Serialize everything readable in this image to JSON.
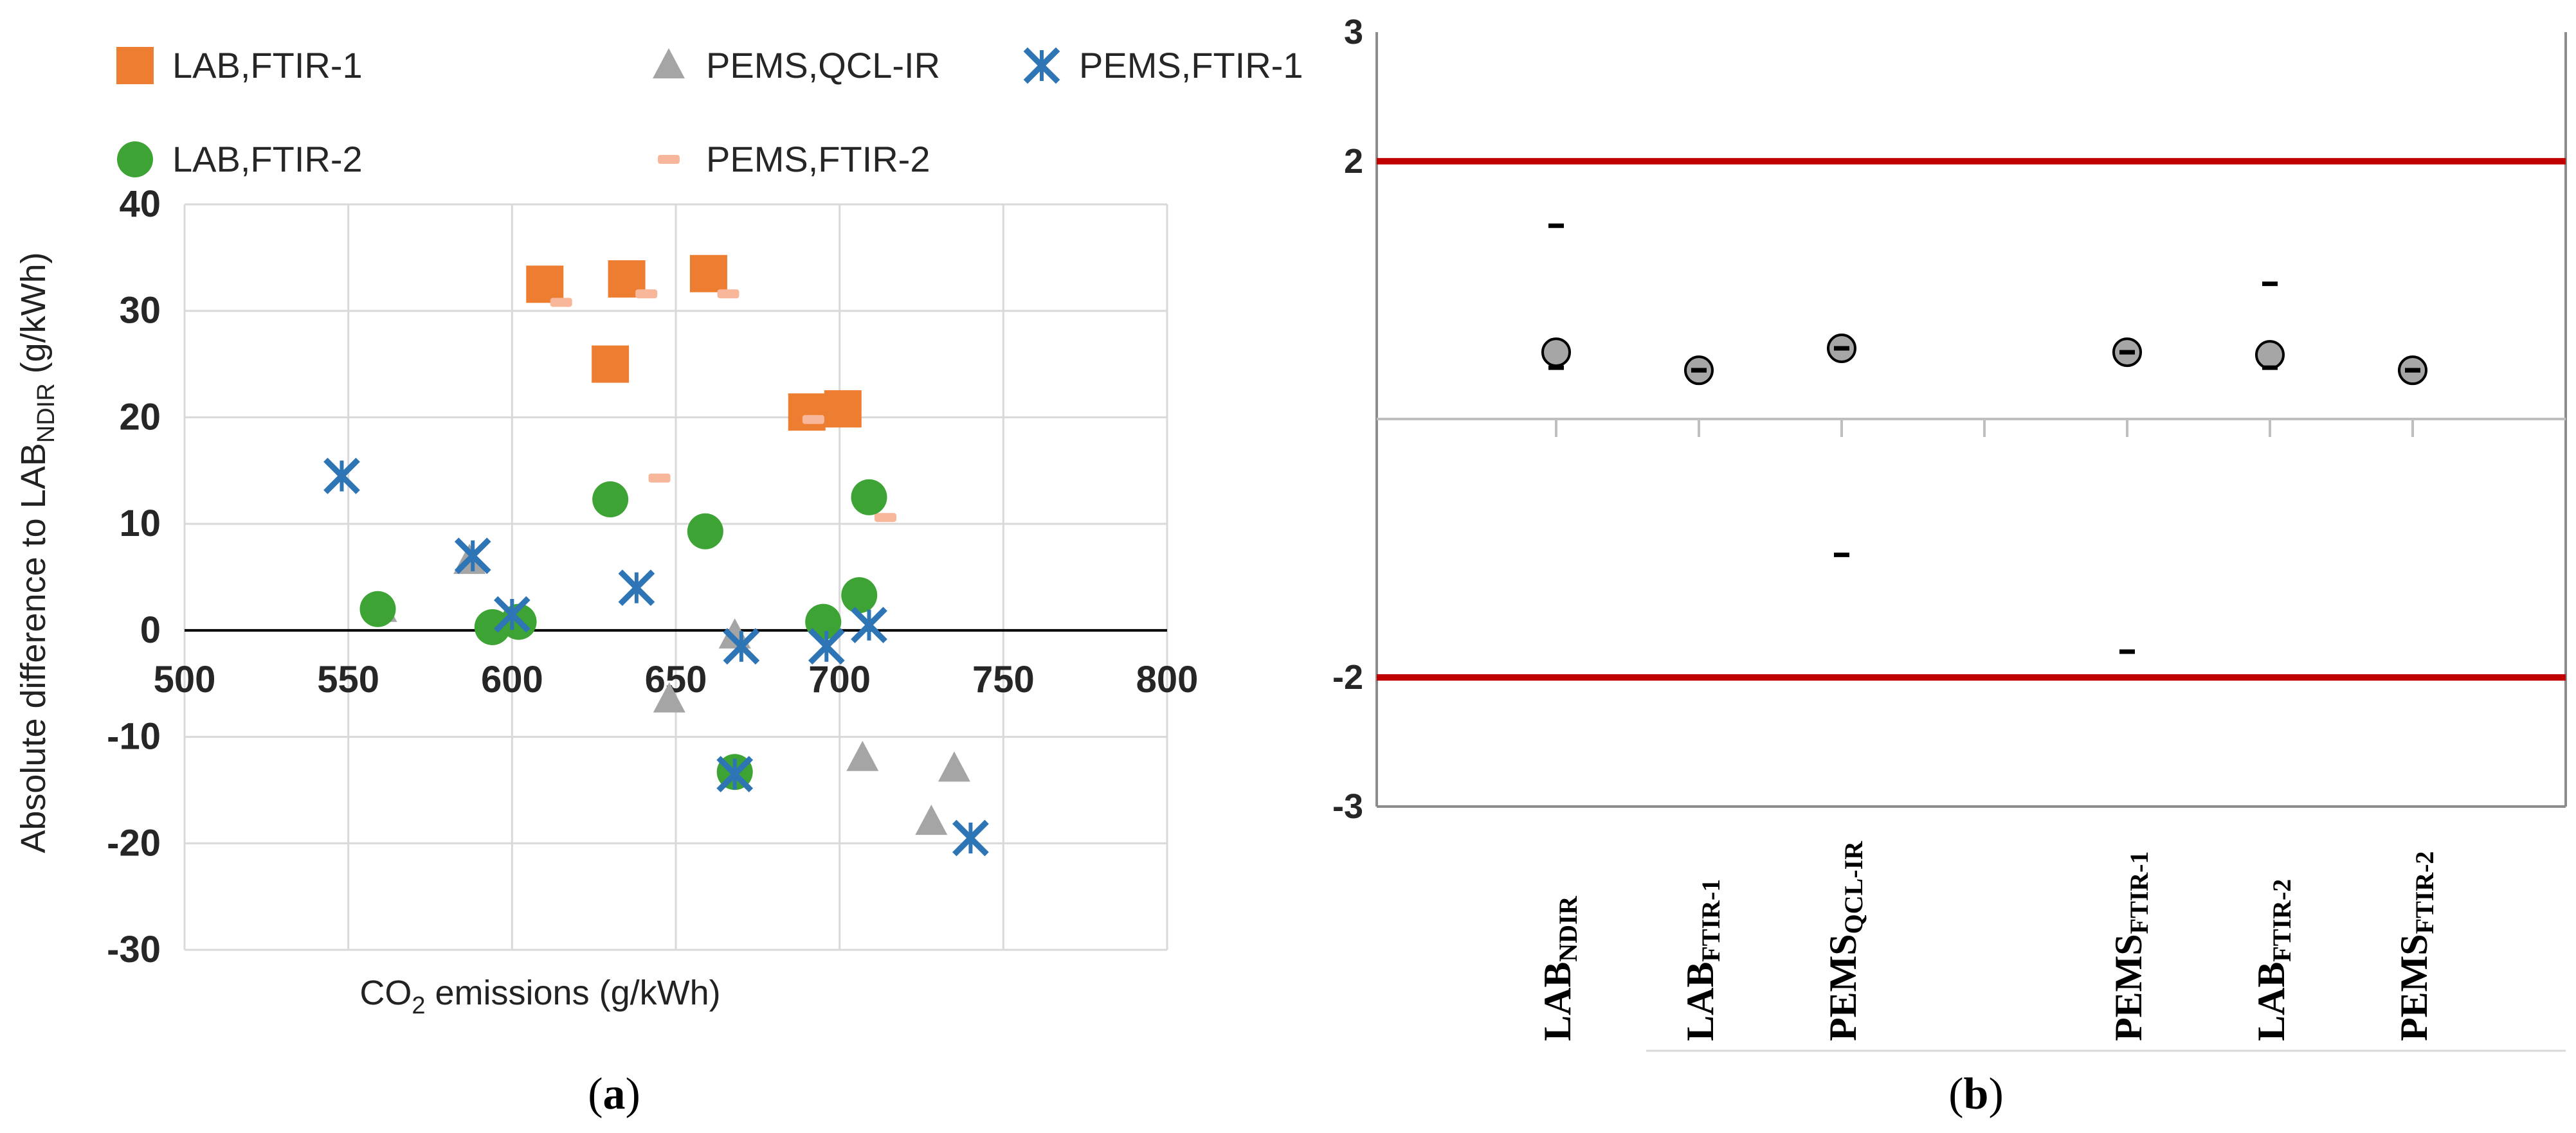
{
  "chart_data": [
    {
      "panel": "a",
      "type": "scatter",
      "panel_label": "(a)",
      "panel_letter": "a",
      "xlabel": {
        "prefix": "CO",
        "sub": "2",
        "rest": " emissions (g/kWh)"
      },
      "ylabel": {
        "prefix": "Absolute difference to LAB",
        "sub": "NDIR",
        "rest": " (g/kWh)"
      },
      "xlim": [
        500,
        800
      ],
      "ylim": [
        -30,
        40
      ],
      "xticks": [
        500,
        550,
        600,
        650,
        700,
        750,
        800
      ],
      "yticks": [
        -30,
        -20,
        -10,
        0,
        10,
        20,
        30,
        40
      ],
      "grid": true,
      "legend_position": "top",
      "series": [
        {
          "name": "LAB,FTIR-1",
          "marker": "square",
          "color": "#ED7D31",
          "points": [
            [
              610,
              32.5
            ],
            [
              635,
              33
            ],
            [
              660,
              33.5
            ],
            [
              630,
              25
            ],
            [
              690,
              20.5
            ],
            [
              701,
              20.8
            ]
          ]
        },
        {
          "name": "PEMS,QCL-IR",
          "marker": "triangle",
          "color": "#A5A5A5",
          "points": [
            [
              560,
              2
            ],
            [
              587,
              6.5
            ],
            [
              648,
              -6.5
            ],
            [
              668,
              -0.5
            ],
            [
              707,
              -12
            ],
            [
              735,
              -13
            ],
            [
              728,
              -18
            ]
          ]
        },
        {
          "name": "PEMS,FTIR-1",
          "marker": "star",
          "color": "#2E75B6",
          "points": [
            [
              548,
              14.5
            ],
            [
              588,
              7
            ],
            [
              600,
              1.5
            ],
            [
              638,
              4
            ],
            [
              670,
              -1.5
            ],
            [
              668,
              -13.5
            ],
            [
              696,
              -1.5
            ],
            [
              709,
              0.5
            ],
            [
              740,
              -19.5
            ]
          ]
        },
        {
          "name": "LAB,FTIR-2",
          "marker": "circle",
          "color": "#3CA334",
          "points": [
            [
              559,
              2
            ],
            [
              594,
              0.3
            ],
            [
              602,
              0.8
            ],
            [
              630,
              12.3
            ],
            [
              659,
              9.3
            ],
            [
              668,
              -13.3
            ],
            [
              695,
              0.8
            ],
            [
              706,
              3.3
            ],
            [
              709,
              12.5
            ]
          ]
        },
        {
          "name": "PEMS,FTIR-2",
          "marker": "dash",
          "color": "#F8B79A",
          "points": [
            [
              615,
              30.8
            ],
            [
              641,
              31.6
            ],
            [
              666,
              31.6
            ],
            [
              645,
              14.3
            ],
            [
              692,
              19.8
            ],
            [
              714,
              10.6
            ]
          ]
        }
      ]
    },
    {
      "panel": "b",
      "type": "scatter",
      "panel_label": "(b)",
      "panel_letter": "b",
      "ylim": [
        -3,
        3
      ],
      "yticks": [
        -3,
        -2,
        2,
        3
      ],
      "limit_lines": [
        -2,
        2
      ],
      "limit_color": "#C00000",
      "categories": [
        {
          "base": "LAB",
          "sub": "NDIR",
          "mean": 0.52,
          "upper": 1.5,
          "lower": 0.4
        },
        {
          "base": "LAB",
          "sub": "FTIR-1",
          "mean": 0.38,
          "upper": 0.38,
          "lower": 0.38
        },
        {
          "base": "PEMS",
          "sub": "QCL-IR",
          "mean": 0.55,
          "upper": 0.55,
          "lower": -1.05
        },
        {
          "base": "",
          "sub": "",
          "mean": null,
          "upper": null,
          "lower": null
        },
        {
          "base": "PEMS",
          "sub": "FTIR-1",
          "mean": 0.52,
          "upper": 0.52,
          "lower": -1.8
        },
        {
          "base": "LAB",
          "sub": "FTIR-2",
          "mean": 0.5,
          "upper": 1.05,
          "lower": 0.4
        },
        {
          "base": "PEMS",
          "sub": "FTIR-2",
          "mean": 0.38,
          "upper": 0.38,
          "lower": 0.38
        }
      ]
    }
  ]
}
